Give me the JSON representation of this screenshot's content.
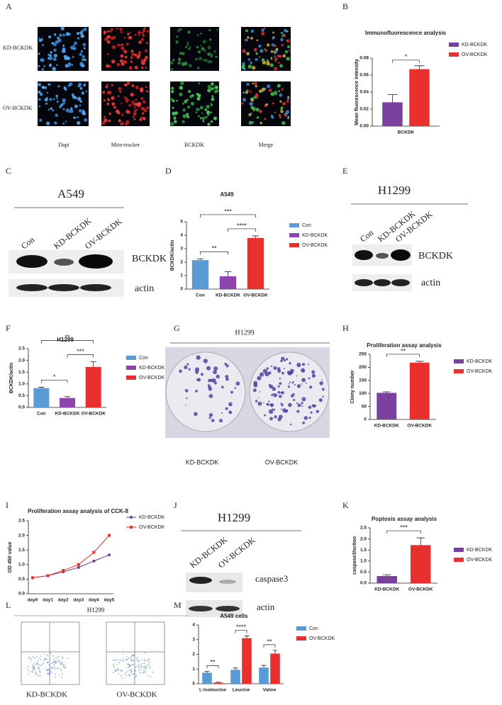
{
  "figure": {
    "panel_labels": [
      "A",
      "B",
      "C",
      "D",
      "E",
      "F",
      "G",
      "H",
      "I",
      "J",
      "K",
      "L",
      "M"
    ],
    "A": {
      "rows": [
        "KD-BCKDK",
        "OV-BCKDK"
      ],
      "columns": [
        "Dapi",
        "Mito-tracker",
        "BCKDK",
        "Merge"
      ]
    },
    "C": {
      "title": "A549",
      "lanes": [
        "Con",
        "KD-BCKDK",
        "OV-BCKDK"
      ],
      "bands": [
        "BCKDK",
        "actin"
      ]
    },
    "E": {
      "title": "H1299",
      "lanes": [
        "Con",
        "KD-BCKDK",
        "OV-BCKDK"
      ],
      "bands": [
        "BCKDK",
        "actin"
      ]
    },
    "G": {
      "title": "H1299",
      "labels": [
        "KD-BCKDK",
        "OV-BCKDK"
      ]
    },
    "J": {
      "title": "H1299",
      "lanes": [
        "KD-BCKDK",
        "OV-BCKDK"
      ],
      "bands": [
        "caspase3",
        "actin"
      ]
    },
    "L": {
      "title": "H1299",
      "labels": [
        "KD-BCKDK",
        "OV-BCKDK"
      ]
    }
  },
  "chart_data": [
    {
      "type": "bar",
      "title": "Immunofluorescence analysis",
      "ylabel": "Mean fluorescence intensity",
      "categories": [
        "BCKDK"
      ],
      "series": [
        {
          "name": "KD-BCKDK",
          "color": "#7b3f9e",
          "values": [
            0.028
          ],
          "errors": [
            0.009
          ]
        },
        {
          "name": "OV-BCKDK",
          "color": "#e8302e",
          "values": [
            0.067
          ],
          "errors": [
            0.004
          ]
        }
      ],
      "significance": [
        "*"
      ],
      "ylim": [
        0,
        0.08
      ],
      "yticks": [
        {
          "value": 0,
          "label": "0.00"
        },
        0.02,
        0.04,
        0.06,
        0.08
      ]
    },
    {
      "type": "bar",
      "title": "A549",
      "ylabel": "BCKDK/actin",
      "categories": [
        "Con",
        "KD-BCKDK",
        "OV-BCKDK"
      ],
      "values": [
        2.15,
        0.95,
        3.8
      ],
      "errors": [
        0.1,
        0.35,
        0.15
      ],
      "colors": [
        "#5b9bd5",
        "#8e44ad",
        "#e8302e"
      ],
      "comparisons": [
        {
          "from": "Con",
          "to": "KD-BCKDK",
          "label": "**"
        },
        {
          "from": "KD-BCKDK",
          "to": "OV-BCKDK",
          "label": "****"
        },
        {
          "from": "Con",
          "to": "OV-BCKDK",
          "label": "***"
        }
      ],
      "ylim": [
        0,
        5
      ],
      "yticks": [
        0,
        1,
        2,
        3,
        4,
        5
      ]
    },
    {
      "type": "bar",
      "title": "H1299",
      "ylabel": "BCKDK/actin",
      "categories": [
        "Con",
        "KD-BCKDK",
        "OV-BCKDK"
      ],
      "values": [
        0.82,
        0.4,
        1.72
      ],
      "errors": [
        0.04,
        0.06,
        0.22
      ],
      "colors": [
        "#5b9bd5",
        "#8e44ad",
        "#e8302e"
      ],
      "comparisons": [
        {
          "from": "Con",
          "to": "KD-BCKDK",
          "label": "*"
        },
        {
          "from": "KD-BCKDK",
          "to": "OV-BCKDK",
          "label": "***"
        },
        {
          "from": "Con",
          "to": "OV-BCKDK",
          "label": "**"
        }
      ],
      "ylim": [
        0,
        2.5
      ],
      "yticks": [
        {
          "value": 0,
          "label": "0.0"
        },
        0.5,
        {
          "value": 1,
          "label": "1.0"
        },
        1.5,
        {
          "value": 2,
          "label": "2.0"
        },
        2.5
      ]
    },
    {
      "type": "bar",
      "title": "Proliferation assay analysis",
      "ylabel": "Clony number",
      "categories": [
        "KD-BCKDK",
        "OV-BCKDK"
      ],
      "values": [
        102,
        218
      ],
      "errors": [
        4,
        5
      ],
      "colors": [
        "#7b3f9e",
        "#e8302e"
      ],
      "comparisons": [
        {
          "from": "KD-BCKDK",
          "to": "OV-BCKDK",
          "label": "**"
        }
      ],
      "ylim": [
        0,
        250
      ],
      "yticks": [
        0,
        50,
        100,
        150,
        200,
        250
      ]
    },
    {
      "type": "line",
      "title": "Proliferation assay analysis of CCK-8",
      "ylabel": "OD 450 value",
      "categories": [
        "day0",
        "day1",
        "day2",
        "day3",
        "day4",
        "day5"
      ],
      "series": [
        {
          "name": "KD-BCKDK",
          "color": "#6a3d9a",
          "marker": "circle",
          "values": [
            0.55,
            0.62,
            0.75,
            0.9,
            1.12,
            1.33
          ]
        },
        {
          "name": "OV-BCKDK",
          "color": "#e8302e",
          "marker": "square",
          "values": [
            0.55,
            0.62,
            0.8,
            1.0,
            1.42,
            2.0
          ]
        }
      ],
      "ylim": [
        0,
        2.5
      ],
      "yticks": [
        {
          "value": 0,
          "label": "0.0"
        },
        0.5,
        {
          "value": 1,
          "label": "1.0"
        },
        1.5,
        {
          "value": 2,
          "label": "2.0"
        },
        2.5
      ]
    },
    {
      "type": "bar",
      "title": "Poptosis assay analysis",
      "ylabel": "caspase3/action",
      "categories": [
        "KD-BCKDK",
        "OV-BCKDK"
      ],
      "values": [
        0.32,
        1.72
      ],
      "errors": [
        0.06,
        0.33
      ],
      "colors": [
        "#7b3f9e",
        "#e8302e"
      ],
      "comparisons": [
        {
          "from": "KD-BCKDK",
          "to": "OV-BCKDK",
          "label": "***"
        }
      ],
      "ylim": [
        0,
        2.5
      ],
      "yticks": [
        {
          "value": 0,
          "label": "0.0"
        },
        0.5,
        {
          "value": 1,
          "label": "1.0"
        },
        1.5,
        {
          "value": 2,
          "label": "2.0"
        },
        2.5
      ]
    },
    {
      "type": "bar",
      "title": "A549 cells",
      "categories": [
        "L-Isoleucine",
        "Leucine",
        "Valine"
      ],
      "series": [
        {
          "name": "Con",
          "color": "#5b9bd5",
          "values": [
            0.75,
            0.95,
            1.1
          ],
          "errors": [
            0.1,
            0.12,
            0.15
          ]
        },
        {
          "name": "OV-BCKDK",
          "color": "#e8302e",
          "values": [
            0.08,
            3.1,
            2.05
          ],
          "errors": [
            0.03,
            0.15,
            0.22
          ]
        }
      ],
      "significance": [
        "**",
        "****",
        "**"
      ],
      "ylim": [
        0,
        4
      ],
      "yticks": [
        0,
        1,
        2,
        3,
        4
      ]
    }
  ]
}
